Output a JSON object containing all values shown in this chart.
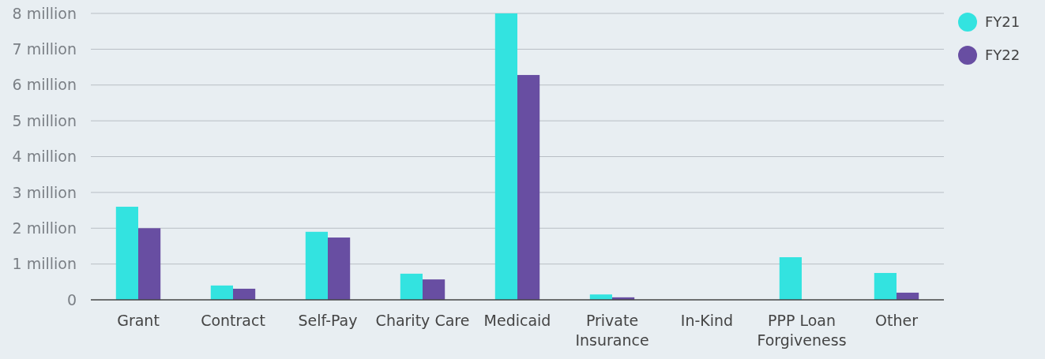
{
  "chart_data": {
    "type": "bar",
    "categories": [
      "Grant",
      "Contract",
      "Self-Pay",
      "Charity Care",
      "Medicaid",
      "Private Insurance",
      "In-Kind",
      "PPP Loan Forgiveness",
      "Other"
    ],
    "series": [
      {
        "name": "FY21",
        "color": "#33e3e0",
        "values": [
          2.6,
          0.4,
          1.9,
          0.73,
          8.0,
          0.15,
          0,
          1.19,
          0.75
        ]
      },
      {
        "name": "FY22",
        "color": "#684ea2",
        "values": [
          2.0,
          0.31,
          1.74,
          0.57,
          6.28,
          0.07,
          0,
          0,
          0.2
        ]
      }
    ],
    "ylim": [
      0,
      8
    ],
    "yticks": [
      0,
      {
        "value": 1,
        "label": "1 million"
      },
      {
        "value": 2,
        "label": "2 million"
      },
      {
        "value": 3,
        "label": "3 million"
      },
      {
        "value": 4,
        "label": "4 million"
      },
      {
        "value": 5,
        "label": "5 million"
      },
      {
        "value": 6,
        "label": "6 million"
      },
      {
        "value": 7,
        "label": "7 million"
      },
      {
        "value": 8,
        "label": "8 million"
      }
    ],
    "grid": "y",
    "legend": "top right"
  }
}
